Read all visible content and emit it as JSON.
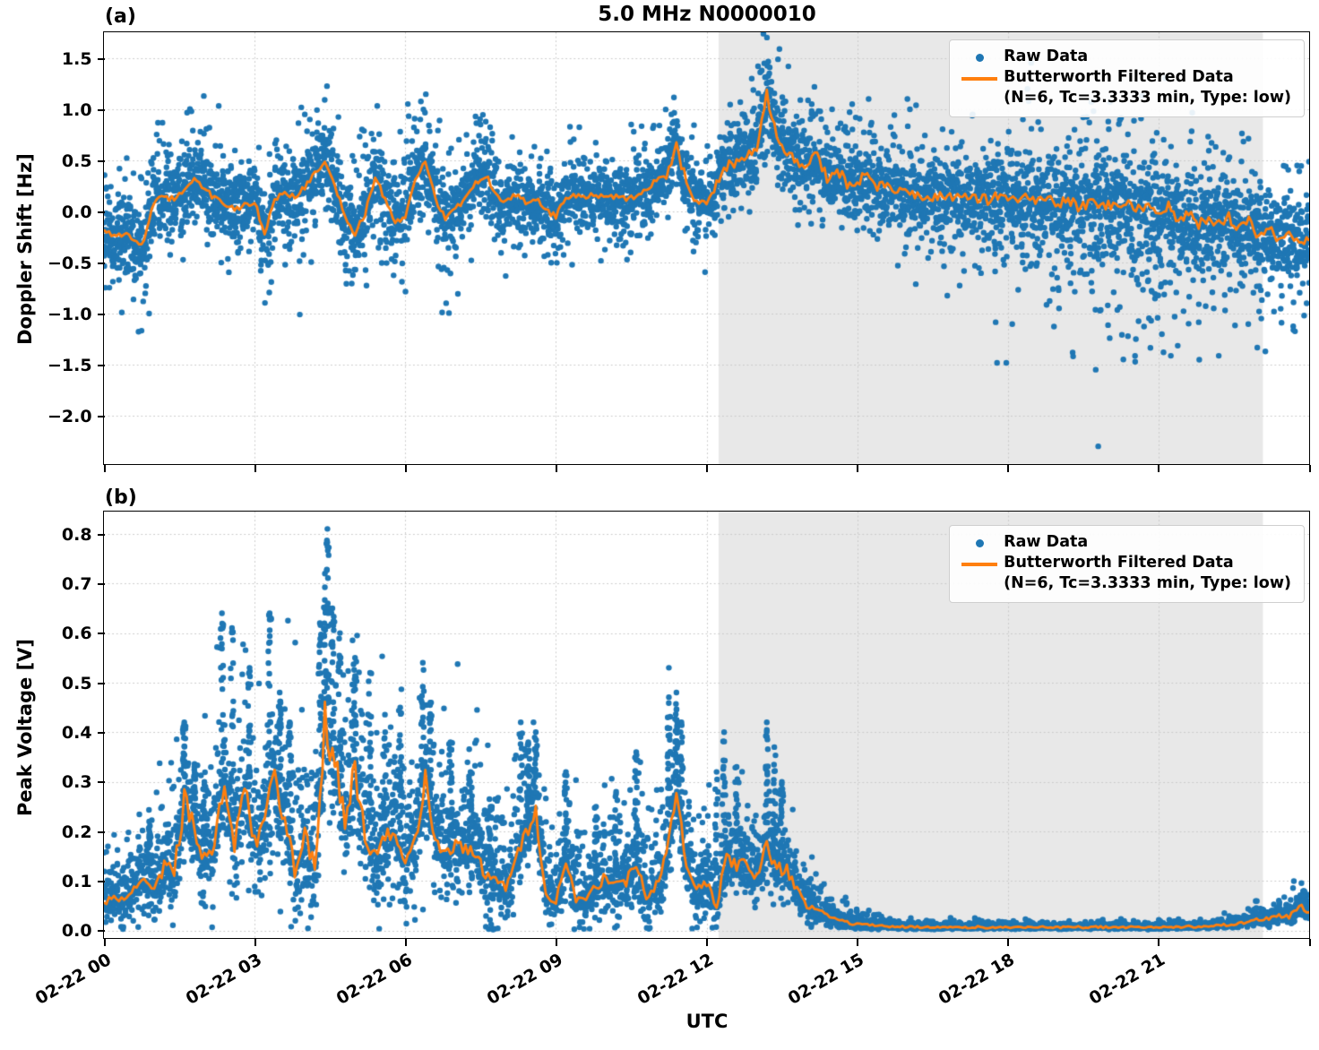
{
  "title": "5.0 MHz N0000010",
  "xlabel": "UTC",
  "colors": {
    "raw": "#1f77b4",
    "filtered": "#ff7f0e",
    "shade": "#e8e8e8",
    "grid": "#c9c9c9"
  },
  "legend": {
    "items": [
      {
        "label": "Raw Data",
        "marker": "dot"
      },
      {
        "label": "Butterworth Filtered Data",
        "label2": "(N=6, Tc=3.3333 min, Type: low)",
        "marker": "line"
      }
    ]
  },
  "xticks": {
    "hours": [
      0,
      3,
      6,
      9,
      12,
      15,
      18,
      21
    ],
    "labels": [
      "02-22 00",
      "02-22 03",
      "02-22 06",
      "02-22 09",
      "02-22 12",
      "02-22 15",
      "02-22 18",
      "02-22 21"
    ],
    "unlabeled_tick_hours": [
      24
    ]
  },
  "chart_data": [
    {
      "type": "scatter+line",
      "panel_label": "(a)",
      "ylabel": "Doppler Shift [Hz]",
      "ylim": [
        -2.474,
        1.754
      ],
      "yticks": [
        {
          "v": 1.5,
          "label": "1.5"
        },
        {
          "v": 1.0,
          "label": "1.0"
        },
        {
          "v": 0.5,
          "label": "0.5"
        },
        {
          "v": 0.0,
          "label": "0.0"
        },
        {
          "v": -0.5,
          "label": "−0.5"
        },
        {
          "v": -1.0,
          "label": "−1.0"
        },
        {
          "v": -1.5,
          "label": "−1.5"
        },
        {
          "v": -2.0,
          "label": "−2.0"
        }
      ],
      "x_unit": "hours after 02-22 00:00 UTC",
      "xlim_hours": [
        0,
        24
      ],
      "shaded_hours": [
        12.24,
        23.08
      ],
      "series_names": [
        "Raw Data",
        "Butterworth Filtered Data (N=6, Tc=3.3333 min, Type: low)"
      ],
      "filtered": {
        "start_hour": 0,
        "dt_hours": 0.2,
        "y": [
          -0.18,
          -0.25,
          -0.21,
          -0.29,
          -0.3,
          0.1,
          0.13,
          0.12,
          0.2,
          0.32,
          0.22,
          0.13,
          0.06,
          0.03,
          0.06,
          0.1,
          -0.22,
          0.12,
          0.18,
          0.14,
          0.24,
          0.38,
          0.48,
          0.25,
          -0.05,
          -0.21,
          -0.02,
          0.33,
          0.12,
          -0.12,
          -0.04,
          0.3,
          0.5,
          0.12,
          -0.07,
          0.01,
          0.15,
          0.28,
          0.36,
          0.16,
          0.08,
          0.16,
          0.1,
          0.13,
          0.02,
          -0.05,
          0.13,
          0.16,
          0.15,
          0.17,
          0.13,
          0.15,
          0.12,
          0.14,
          0.22,
          0.3,
          0.37,
          0.65,
          0.28,
          0.1,
          0.08,
          0.28,
          0.45,
          0.47,
          0.55,
          0.62,
          1.15,
          0.72,
          0.6,
          0.47,
          0.45,
          0.55,
          0.32,
          0.42,
          0.27,
          0.31,
          0.33,
          0.25,
          0.23,
          0.19,
          0.17,
          0.15,
          0.13,
          0.16,
          0.13,
          0.15,
          0.12,
          0.14,
          0.12,
          0.14,
          0.12,
          0.13,
          0.12,
          0.1,
          0.11,
          0.07,
          0.12,
          0.05,
          0.08,
          0.05,
          0.08,
          0.04,
          0.06,
          0.03,
          0.05,
          -0.03,
          0.06,
          -0.09,
          -0.02,
          -0.13,
          -0.08,
          -0.14,
          -0.06,
          -0.16,
          -0.08,
          -0.25,
          -0.18,
          -0.3,
          -0.2,
          -0.35,
          -0.27
        ]
      },
      "raw_spread_per_hour": [
        0.38,
        0.35,
        0.35,
        0.32,
        0.38,
        0.38,
        0.38,
        0.35,
        0.3,
        0.28,
        0.25,
        0.3,
        0.3,
        0.33,
        0.35,
        0.33,
        0.35,
        0.38,
        0.4,
        0.45,
        0.5,
        0.48,
        0.42,
        0.38,
        0.4
      ],
      "low_tail": {
        "start_hour": 17.5,
        "end_hour": 23.3,
        "min": -1.5,
        "prob": 0.3
      },
      "outliers": [
        [
          0.9,
          -1.0
        ],
        [
          2.1,
          0.82
        ],
        [
          3.9,
          -1.01
        ],
        [
          4.0,
          0.95
        ],
        [
          4.1,
          0.9
        ],
        [
          5.9,
          0.78
        ],
        [
          6.3,
          0.9
        ],
        [
          7.4,
          0.93
        ],
        [
          7.5,
          0.85
        ],
        [
          10.5,
          0.85
        ],
        [
          10.55,
          0.78
        ],
        [
          11.3,
          0.95
        ],
        [
          11.35,
          0.88
        ],
        [
          12.9,
          1.3
        ],
        [
          13.1,
          1.38
        ],
        [
          13.15,
          1.45
        ],
        [
          13.25,
          1.35
        ],
        [
          14.5,
          1.0
        ],
        [
          14.9,
          1.05
        ],
        [
          16.0,
          1.1
        ],
        [
          16.05,
          1.0
        ],
        [
          17.3,
          0.95
        ],
        [
          18.3,
          0.9
        ],
        [
          19.3,
          -1.42
        ],
        [
          19.5,
          0.92
        ],
        [
          19.75,
          -1.55
        ],
        [
          19.8,
          -2.3
        ],
        [
          20.0,
          0.88
        ],
        [
          20.3,
          -1.45
        ],
        [
          20.55,
          -1.25
        ],
        [
          21.1,
          -1.38
        ],
        [
          21.6,
          -1.1
        ],
        [
          22.1,
          -0.95
        ],
        [
          23.3,
          -0.98
        ],
        [
          23.9,
          -1.02
        ],
        [
          23.95,
          -0.9
        ]
      ]
    },
    {
      "type": "scatter+line",
      "panel_label": "(b)",
      "ylabel": "Peak Voltage [V]",
      "ylim": [
        -0.015,
        0.845
      ],
      "yticks": [
        {
          "v": 0.8,
          "label": "0.8"
        },
        {
          "v": 0.7,
          "label": "0.7"
        },
        {
          "v": 0.6,
          "label": "0.6"
        },
        {
          "v": 0.5,
          "label": "0.5"
        },
        {
          "v": 0.4,
          "label": "0.4"
        },
        {
          "v": 0.3,
          "label": "0.3"
        },
        {
          "v": 0.2,
          "label": "0.2"
        },
        {
          "v": 0.1,
          "label": "0.1"
        },
        {
          "v": 0.0,
          "label": "0.0"
        }
      ],
      "x_unit": "hours after 02-22 00:00 UTC",
      "xlim_hours": [
        0,
        24
      ],
      "shaded_hours": [
        12.24,
        23.08
      ],
      "series_names": [
        "Raw Data",
        "Butterworth Filtered Data (N=6, Tc=3.3333 min, Type: low)"
      ],
      "filtered": {
        "start_hour": 0,
        "dt_hours": 0.2,
        "y": [
          0.055,
          0.07,
          0.06,
          0.09,
          0.1,
          0.085,
          0.13,
          0.12,
          0.26,
          0.2,
          0.15,
          0.17,
          0.31,
          0.17,
          0.3,
          0.18,
          0.22,
          0.31,
          0.23,
          0.12,
          0.19,
          0.13,
          0.42,
          0.34,
          0.22,
          0.32,
          0.19,
          0.15,
          0.18,
          0.21,
          0.13,
          0.18,
          0.3,
          0.19,
          0.16,
          0.18,
          0.16,
          0.15,
          0.11,
          0.1,
          0.09,
          0.14,
          0.2,
          0.24,
          0.07,
          0.06,
          0.15,
          0.06,
          0.07,
          0.09,
          0.11,
          0.09,
          0.1,
          0.14,
          0.07,
          0.09,
          0.15,
          0.29,
          0.13,
          0.08,
          0.1,
          0.05,
          0.15,
          0.13,
          0.14,
          0.11,
          0.17,
          0.13,
          0.12,
          0.08,
          0.05,
          0.04,
          0.03,
          0.022,
          0.016,
          0.013,
          0.011,
          0.01,
          0.009,
          0.008,
          0.007,
          0.007,
          0.0065,
          0.007,
          0.0065,
          0.007,
          0.0065,
          0.007,
          0.0065,
          0.007,
          0.0065,
          0.007,
          0.0065,
          0.007,
          0.0065,
          0.007,
          0.0065,
          0.007,
          0.0065,
          0.007,
          0.0065,
          0.007,
          0.0065,
          0.007,
          0.0065,
          0.007,
          0.007,
          0.0075,
          0.008,
          0.008,
          0.009,
          0.01,
          0.012,
          0.015,
          0.018,
          0.022,
          0.025,
          0.03,
          0.028,
          0.05,
          0.038
        ]
      },
      "raw_spread_per_hour": [
        0.05,
        0.07,
        0.12,
        0.12,
        0.15,
        0.13,
        0.12,
        0.1,
        0.1,
        0.06,
        0.07,
        0.1,
        0.07,
        0.07,
        0.035,
        0.012,
        0.006,
        0.005,
        0.005,
        0.005,
        0.005,
        0.005,
        0.006,
        0.012,
        0.022
      ],
      "peaks": [
        [
          0.9,
          0.22
        ],
        [
          1.6,
          0.42
        ],
        [
          1.8,
          0.33
        ],
        [
          2.0,
          0.3
        ],
        [
          2.35,
          0.64
        ],
        [
          2.55,
          0.61
        ],
        [
          2.9,
          0.53
        ],
        [
          3.3,
          0.64
        ],
        [
          3.5,
          0.48
        ],
        [
          3.7,
          0.42
        ],
        [
          4.3,
          0.62
        ],
        [
          4.4,
          0.72
        ],
        [
          4.45,
          0.81
        ],
        [
          4.55,
          0.65
        ],
        [
          4.7,
          0.6
        ],
        [
          5.0,
          0.55
        ],
        [
          5.3,
          0.52
        ],
        [
          5.6,
          0.4
        ],
        [
          5.9,
          0.45
        ],
        [
          6.35,
          0.54
        ],
        [
          6.5,
          0.46
        ],
        [
          6.9,
          0.38
        ],
        [
          7.3,
          0.32
        ],
        [
          7.7,
          0.25
        ],
        [
          8.3,
          0.42
        ],
        [
          8.45,
          0.38
        ],
        [
          8.6,
          0.4
        ],
        [
          9.2,
          0.32
        ],
        [
          9.8,
          0.25
        ],
        [
          10.2,
          0.28
        ],
        [
          10.6,
          0.36
        ],
        [
          11.25,
          0.53
        ],
        [
          11.4,
          0.48
        ],
        [
          11.5,
          0.42
        ],
        [
          12.2,
          0.32
        ],
        [
          12.35,
          0.4
        ],
        [
          12.6,
          0.33
        ],
        [
          13.2,
          0.42
        ],
        [
          13.35,
          0.37
        ],
        [
          13.5,
          0.3
        ],
        [
          23.9,
          0.08
        ]
      ]
    }
  ]
}
